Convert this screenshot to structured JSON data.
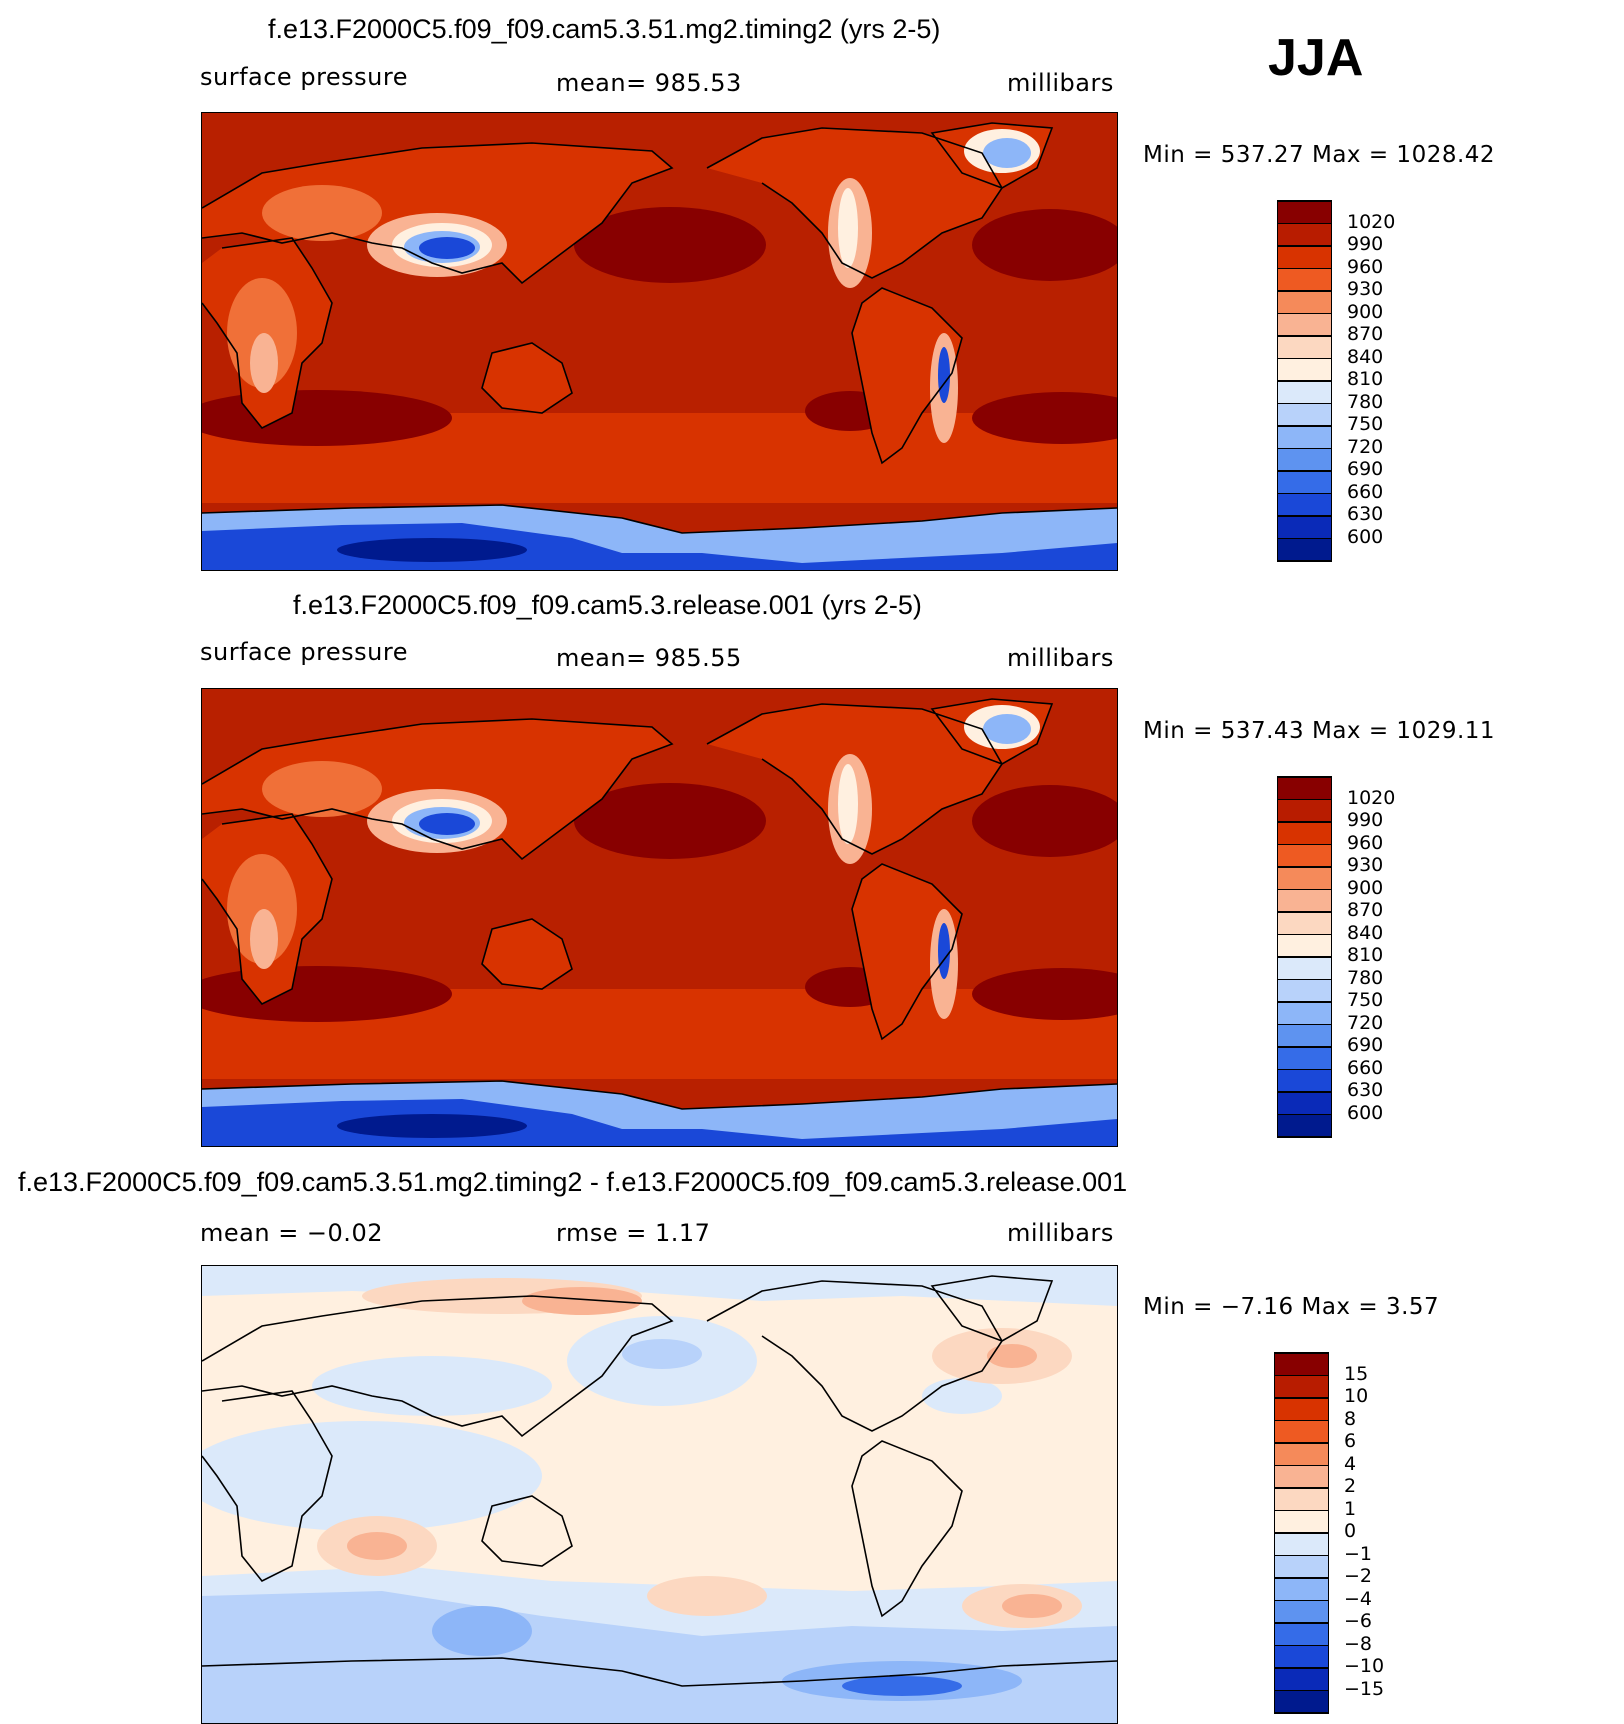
{
  "season": "JJA",
  "panels": [
    {
      "title": "f.e13.F2000C5.f09_f09.cam5.3.51.mg2.timing2 (yrs 2-5)",
      "left_label": "surface pressure",
      "center_label": "mean=  985.53",
      "right_label": "millibars",
      "minmax": "Min = 537.27 Max = 1028.42",
      "colorbar_labels": [
        "1020",
        "990",
        "960",
        "930",
        "900",
        "870",
        "840",
        "810",
        "780",
        "750",
        "720",
        "690",
        "660",
        "630",
        "600"
      ],
      "colorbar_colors": [
        "#880000",
        "#b81c00",
        "#d83300",
        "#ee5a22",
        "#f58a5a",
        "#f9b393",
        "#fcd8c1",
        "#fff0e0",
        "#dbe9fa",
        "#b8d2fa",
        "#8db6f8",
        "#5e93f0",
        "#356ce8",
        "#1a48d8",
        "#0a2ab8",
        "#001a8e"
      ],
      "map": {
        "ocean": "#b82000",
        "high": "#880000",
        "trop": "#b42404",
        "south": "#d83300",
        "land": "#d83300",
        "land_hi": "#f07038",
        "mountain_a": "#f9b393",
        "mountain_b": "#fff0e0",
        "cold_a": "#8db6f8",
        "cold_b": "#1a48d8",
        "cold_c": "#001a8e"
      }
    },
    {
      "title": "f.e13.F2000C5.f09_f09.cam5.3.release.001 (yrs 2-5)",
      "left_label": "surface pressure",
      "center_label": "mean=  985.55",
      "right_label": "millibars",
      "minmax": "Min = 537.43 Max = 1029.11",
      "colorbar_labels": [
        "1020",
        "990",
        "960",
        "930",
        "900",
        "870",
        "840",
        "810",
        "780",
        "750",
        "720",
        "690",
        "660",
        "630",
        "600"
      ],
      "colorbar_colors": [
        "#880000",
        "#b81c00",
        "#d83300",
        "#ee5a22",
        "#f58a5a",
        "#f9b393",
        "#fcd8c1",
        "#fff0e0",
        "#dbe9fa",
        "#b8d2fa",
        "#8db6f8",
        "#5e93f0",
        "#356ce8",
        "#1a48d8",
        "#0a2ab8",
        "#001a8e"
      ],
      "map": {
        "ocean": "#b82000",
        "high": "#880000",
        "trop": "#b42404",
        "south": "#d83300",
        "land": "#d83300",
        "land_hi": "#f07038",
        "mountain_a": "#f9b393",
        "mountain_b": "#fff0e0",
        "cold_a": "#8db6f8",
        "cold_b": "#1a48d8",
        "cold_c": "#001a8e"
      }
    },
    {
      "title": "f.e13.F2000C5.f09_f09.cam5.3.51.mg2.timing2 - f.e13.F2000C5.f09_f09.cam5.3.release.001",
      "left_label": "mean =   −0.02",
      "center_label": "rmse =     1.17",
      "right_label": "millibars",
      "minmax": "Min =   −7.16 Max =      3.57",
      "colorbar_labels": [
        "15",
        "10",
        "8",
        "6",
        "4",
        "2",
        "1",
        "0",
        "−1",
        "−2",
        "−4",
        "−6",
        "−8",
        "−10",
        "−15"
      ],
      "colorbar_colors": [
        "#880000",
        "#b81c00",
        "#d83300",
        "#ee5a22",
        "#f58a5a",
        "#f9b393",
        "#fcd8c1",
        "#fff0e0",
        "#dbe9fa",
        "#b8d2fa",
        "#8db6f8",
        "#5e93f0",
        "#356ce8",
        "#1a48d8",
        "#0a2ab8",
        "#001a8e"
      ],
      "map": {
        "base": "#fff0e0",
        "pos_a": "#fcd8c1",
        "pos_b": "#f9b393",
        "pos_c": "#f58a5a",
        "neg_a": "#dbe9fa",
        "neg_b": "#b8d2fa",
        "neg_c": "#8db6f8",
        "neg_d": "#356ce8"
      }
    }
  ]
}
